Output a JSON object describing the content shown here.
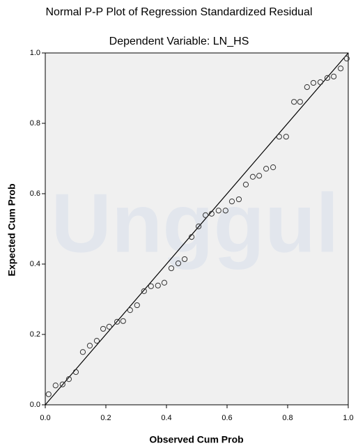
{
  "chart_data": {
    "type": "scatter",
    "title": "Normal P-P Plot of Regression Standardized Residual",
    "subtitle": "Dependent Variable: LN_HS",
    "x_label": "Observed Cum Prob",
    "y_label": "Expected Cum Prob",
    "watermark": "Unggul",
    "color": "#333333",
    "xlim": [
      0,
      1
    ],
    "ylim": [
      0,
      1
    ],
    "xticks": [
      {
        "value": 0,
        "label": "0.0"
      },
      0.2,
      0.4,
      0.6,
      0.8,
      {
        "value": 1,
        "label": "1.0"
      }
    ],
    "yticks": [
      {
        "value": 0,
        "label": "0.0"
      },
      0.2,
      0.4,
      0.6,
      0.8,
      {
        "value": 1,
        "label": "1.0"
      }
    ],
    "x": [
      0.011,
      0.034,
      0.057,
      0.078,
      0.101,
      0.124,
      0.147,
      0.17,
      0.191,
      0.211,
      0.237,
      0.257,
      0.28,
      0.303,
      0.326,
      0.349,
      0.372,
      0.393,
      0.416,
      0.439,
      0.46,
      0.483,
      0.506,
      0.529,
      0.549,
      0.572,
      0.595,
      0.616,
      0.639,
      0.662,
      0.685,
      0.706,
      0.729,
      0.752,
      0.772,
      0.795,
      0.821,
      0.841,
      0.864,
      0.885,
      0.908,
      0.931,
      0.952,
      0.975,
      0.995
    ],
    "values": [
      0.03,
      0.055,
      0.058,
      0.073,
      0.093,
      0.15,
      0.168,
      0.182,
      0.216,
      0.222,
      0.236,
      0.238,
      0.269,
      0.283,
      0.323,
      0.337,
      0.339,
      0.347,
      0.388,
      0.402,
      0.414,
      0.477,
      0.507,
      0.539,
      0.543,
      0.552,
      0.552,
      0.578,
      0.584,
      0.626,
      0.648,
      0.651,
      0.671,
      0.675,
      0.762,
      0.762,
      0.861,
      0.861,
      0.903,
      0.915,
      0.917,
      0.929,
      0.933,
      0.956,
      0.984
    ]
  }
}
